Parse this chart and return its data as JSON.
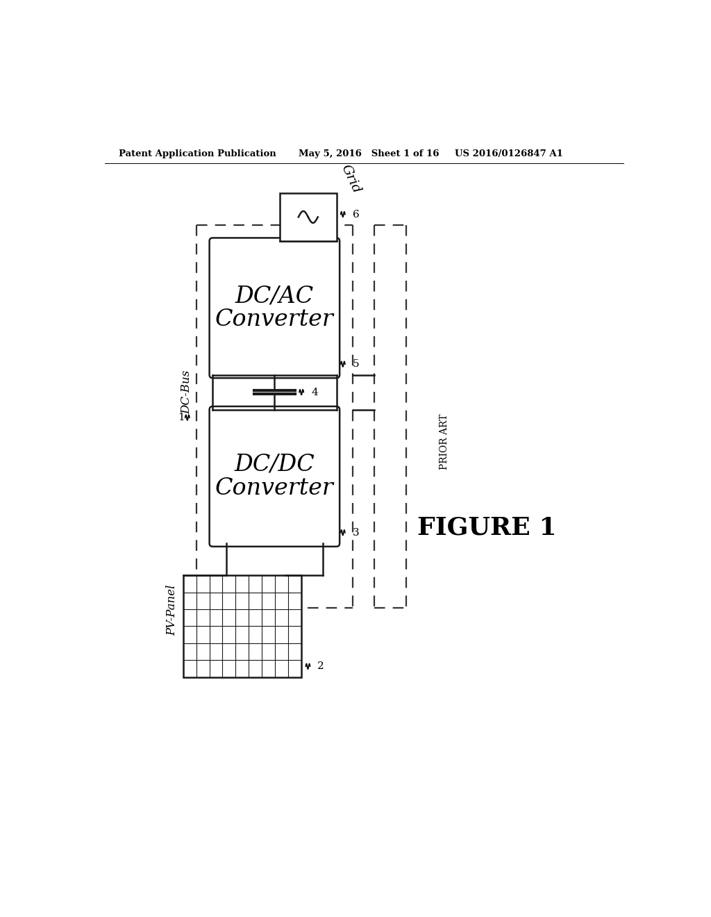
{
  "bg_color": "#ffffff",
  "header_left": "Patent Application Publication",
  "header_mid": "May 5, 2016   Sheet 1 of 16",
  "header_right": "US 2016/0126847 A1",
  "figure_label": "FIGURE 1",
  "prior_art": "PRIOR ART",
  "box1_text1": "DC/AC",
  "box1_text2": "Converter",
  "box2_text1": "DC/DC",
  "box2_text2": "Converter",
  "label_grid": "Grid",
  "label_dcbus": "DC-Bus",
  "label_pvpanel": "PV-Panel",
  "num_1": "1",
  "num_2": "2",
  "num_3": "3",
  "num_4": "4",
  "num_5": "5",
  "num_6": "6",
  "line_color": "#1a1a1a",
  "dashed_color": "#333333"
}
